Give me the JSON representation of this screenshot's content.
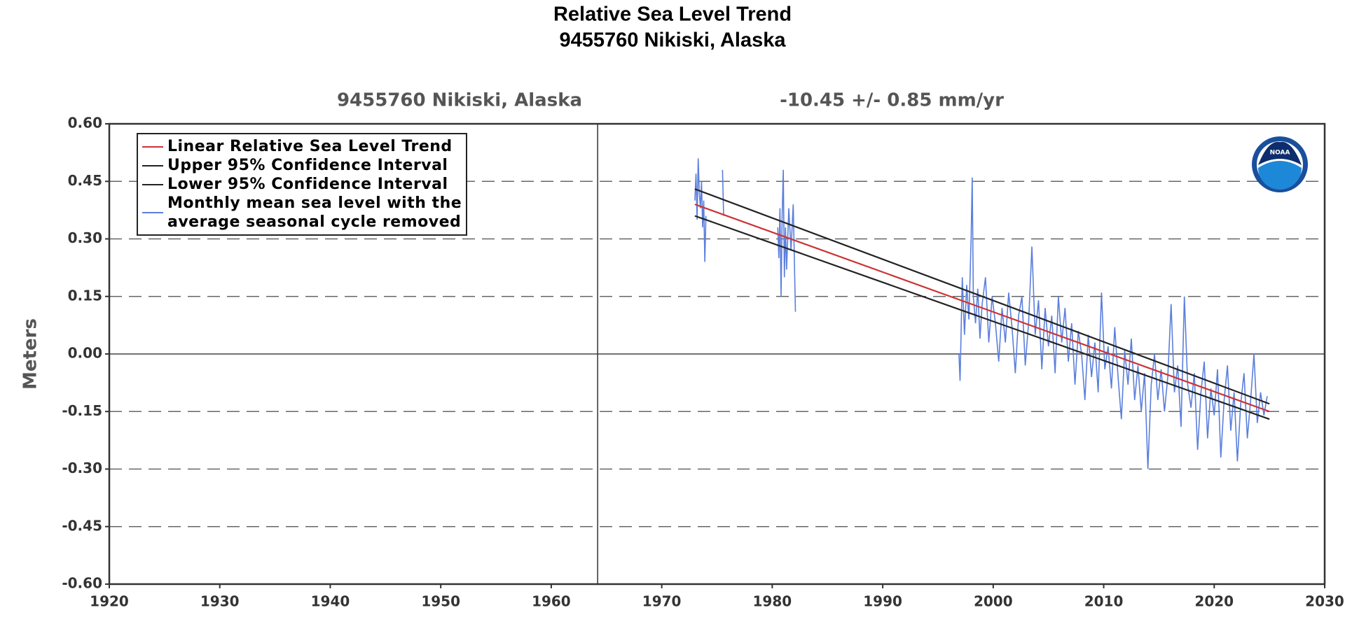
{
  "chart_data": {
    "type": "line",
    "title": [
      "Relative Sea Level Trend",
      "9455760 Nikiski, Alaska"
    ],
    "subtitles": [
      "9455760 Nikiski, Alaska",
      "-10.45 +/-  0.85 mm/yr"
    ],
    "ylabel": "Meters",
    "xlim": [
      1920,
      2030
    ],
    "xticks": [
      1920,
      1930,
      1940,
      1950,
      1960,
      1970,
      1980,
      1990,
      2000,
      2010,
      2020,
      2030
    ],
    "ylim": [
      -0.6,
      0.6
    ],
    "yticks": [
      {
        "value": -0.6,
        "label": "-0.60"
      },
      {
        "value": -0.45,
        "label": "-0.45"
      },
      {
        "value": -0.3,
        "label": "-0.30"
      },
      {
        "value": -0.15,
        "label": "-0.15"
      },
      {
        "value": 0,
        "label": "0.00"
      },
      {
        "value": 0.15,
        "label": "0.15"
      },
      {
        "value": 0.3,
        "label": "0.30"
      },
      {
        "value": 0.45,
        "label": "0.45"
      },
      {
        "value": 0.6,
        "label": "0.60"
      }
    ],
    "grid": true,
    "reference_x": 1964.2,
    "legend": "upper left",
    "series": [
      {
        "name": "Linear Relative Sea Level Trend",
        "color": "#cc3333",
        "x": [
          1973,
          2025
        ],
        "values": [
          0.39,
          -0.15
        ]
      },
      {
        "name": "Upper 95% Confidence Interval",
        "color": "#222222",
        "x": [
          1973,
          2025
        ],
        "values": [
          0.43,
          -0.13
        ]
      },
      {
        "name": "Lower 95% Confidence Interval",
        "color": "#222222",
        "x": [
          1973,
          2025
        ],
        "values": [
          0.36,
          -0.17
        ]
      },
      {
        "name": "Monthly mean sea level with the\naverage seasonal cycle removed",
        "color": "#5b7fdc",
        "x": [
          1973.0,
          1973.1,
          1973.2,
          1973.3,
          1973.4,
          1973.5,
          1973.6,
          1973.7,
          1973.8,
          1973.9,
          1974.0,
          1974.5,
          1975.5,
          1975.6,
          1978.0,
          1980.5,
          1980.6,
          1980.7,
          1980.8,
          1980.9,
          1981.0,
          1981.1,
          1981.2,
          1981.3,
          1981.5,
          1981.7,
          1981.9,
          1982.0,
          1982.1,
          1990.0,
          1996.9,
          1997.0,
          1997.2,
          1997.4,
          1997.6,
          1997.8,
          1998.0,
          1998.1,
          1998.2,
          1998.4,
          1998.6,
          1998.8,
          1999.0,
          1999.3,
          1999.6,
          1999.9,
          2000.2,
          2000.5,
          2000.8,
          2001.1,
          2001.4,
          2001.7,
          2002.0,
          2002.3,
          2002.6,
          2002.9,
          2003.2,
          2003.5,
          2003.8,
          2004.1,
          2004.4,
          2004.7,
          2005.0,
          2005.3,
          2005.6,
          2005.9,
          2006.2,
          2006.5,
          2006.8,
          2007.1,
          2007.4,
          2007.7,
          2008.0,
          2008.3,
          2008.6,
          2008.9,
          2009.2,
          2009.5,
          2009.8,
          2010.1,
          2010.4,
          2010.7,
          2011.0,
          2011.3,
          2011.6,
          2011.9,
          2012.2,
          2012.5,
          2012.8,
          2013.1,
          2013.4,
          2013.7,
          2014.0,
          2014.3,
          2014.6,
          2014.9,
          2015.2,
          2015.5,
          2015.8,
          2016.1,
          2016.4,
          2016.7,
          2017.0,
          2017.3,
          2017.6,
          2017.9,
          2018.2,
          2018.5,
          2018.8,
          2019.1,
          2019.4,
          2019.7,
          2020.0,
          2020.3,
          2020.6,
          2020.9,
          2021.2,
          2021.5,
          2021.8,
          2022.1,
          2022.4,
          2022.7,
          2023.0,
          2023.3,
          2023.6,
          2023.9,
          2024.2,
          2024.5,
          2024.8
        ],
        "values": [
          0.4,
          0.47,
          0.35,
          0.51,
          0.42,
          0.38,
          0.45,
          0.33,
          0.4,
          0.24,
          0.36,
          null,
          0.48,
          0.36,
          null,
          0.33,
          0.25,
          0.38,
          0.15,
          0.36,
          0.48,
          0.2,
          0.33,
          0.22,
          0.38,
          0.27,
          0.39,
          0.25,
          0.11,
          null,
          0.0,
          -0.07,
          0.2,
          0.05,
          0.18,
          0.09,
          0.3,
          0.46,
          0.15,
          0.08,
          0.17,
          0.04,
          0.13,
          0.2,
          0.03,
          0.15,
          0.08,
          -0.02,
          0.12,
          0.03,
          0.16,
          0.07,
          -0.05,
          0.1,
          0.15,
          -0.03,
          0.08,
          0.28,
          0.05,
          0.14,
          -0.04,
          0.12,
          0.02,
          0.1,
          -0.05,
          0.15,
          0.03,
          0.12,
          -0.02,
          0.08,
          -0.08,
          0.06,
          0.0,
          -0.12,
          0.05,
          -0.06,
          0.03,
          -0.1,
          0.16,
          -0.04,
          0.02,
          -0.09,
          0.07,
          -0.06,
          -0.17,
          0.01,
          -0.08,
          0.04,
          -0.12,
          -0.03,
          -0.15,
          -0.05,
          -0.3,
          -0.08,
          0.0,
          -0.12,
          -0.04,
          -0.15,
          -0.06,
          0.13,
          -0.1,
          -0.03,
          -0.19,
          0.15,
          -0.08,
          -0.14,
          -0.05,
          -0.25,
          -0.1,
          -0.02,
          -0.22,
          -0.09,
          -0.16,
          -0.04,
          -0.27,
          -0.12,
          -0.03,
          -0.2,
          -0.1,
          -0.28,
          -0.13,
          -0.05,
          -0.22,
          -0.12,
          0.0,
          -0.18,
          -0.1,
          -0.16,
          -0.11
        ]
      }
    ]
  }
}
